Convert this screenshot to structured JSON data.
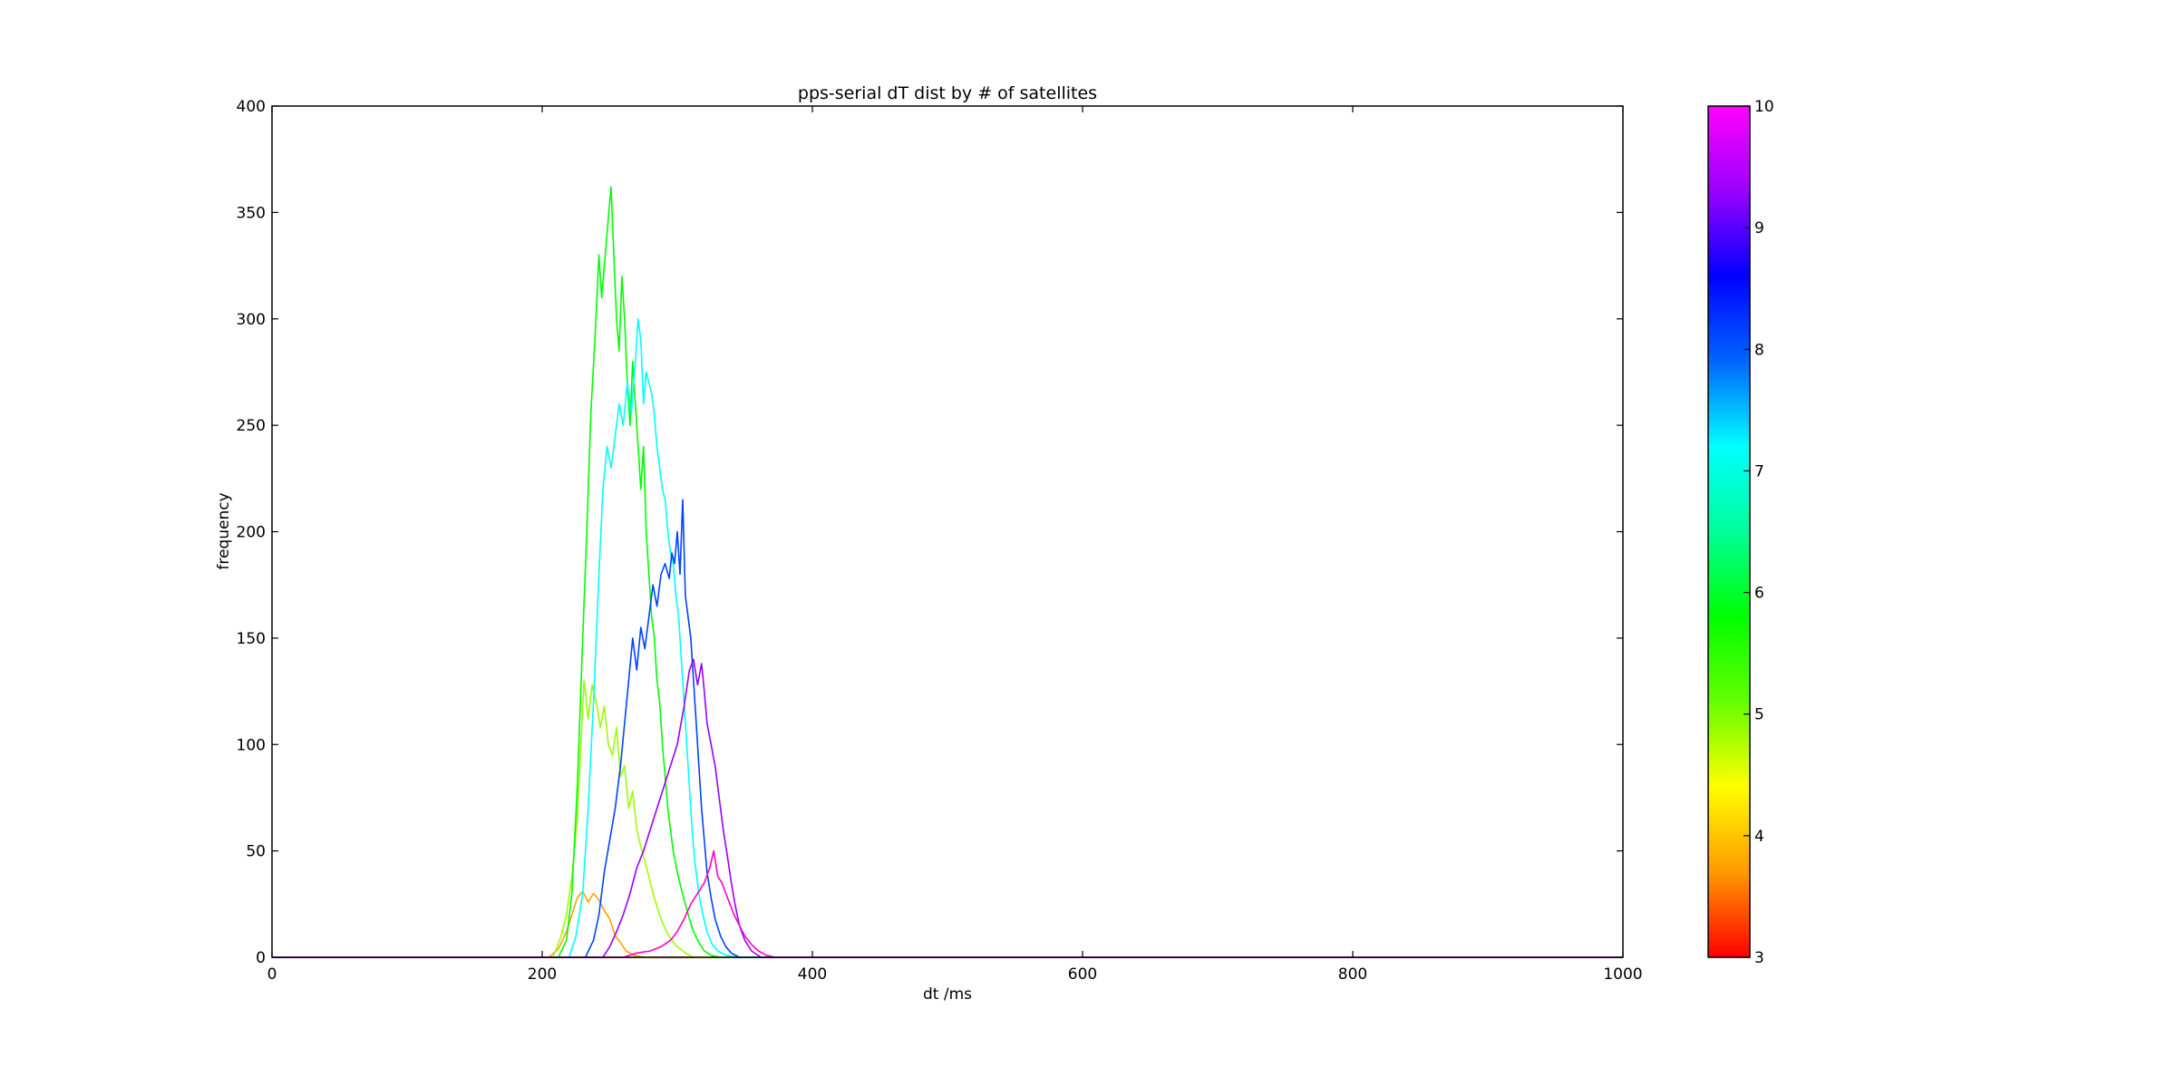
{
  "chart_data": {
    "type": "line",
    "title": "pps-serial dT dist by # of satellites",
    "xlabel": "dt /ms",
    "ylabel": "frequency",
    "xlim": [
      0,
      1000
    ],
    "ylim": [
      0,
      400
    ],
    "xticks": [
      0,
      200,
      400,
      600,
      800,
      1000
    ],
    "yticks": [
      0,
      50,
      100,
      150,
      200,
      250,
      300,
      350,
      400
    ],
    "grid": false,
    "legend": "none",
    "colorbar": {
      "min": 3,
      "max": 10,
      "ticks": [
        3,
        4,
        5,
        6,
        7,
        8,
        9,
        10
      ],
      "colormap": [
        "#ff0000",
        "#ff9900",
        "#ffff00",
        "#66ff00",
        "#00ff00",
        "#00ff99",
        "#00ffff",
        "#0066ff",
        "#0000ff",
        "#9900ff",
        "#ff00ff"
      ]
    },
    "series": [
      {
        "sats": 3,
        "color": "#ff0000",
        "points": [
          [
            0,
            0
          ],
          [
            1000,
            0
          ]
        ]
      },
      {
        "sats": 4,
        "color": "#ffa200",
        "points": [
          [
            0,
            0
          ],
          [
            205,
            0
          ],
          [
            212,
            4
          ],
          [
            218,
            12
          ],
          [
            222,
            20
          ],
          [
            226,
            28
          ],
          [
            230,
            31
          ],
          [
            234,
            26
          ],
          [
            238,
            30
          ],
          [
            242,
            27
          ],
          [
            246,
            22
          ],
          [
            250,
            18
          ],
          [
            254,
            10
          ],
          [
            258,
            7
          ],
          [
            262,
            3
          ],
          [
            268,
            1
          ],
          [
            276,
            0
          ],
          [
            1000,
            0
          ]
        ]
      },
      {
        "sats": 5,
        "color": "#9aff00",
        "points": [
          [
            0,
            0
          ],
          [
            208,
            0
          ],
          [
            214,
            10
          ],
          [
            218,
            20
          ],
          [
            222,
            38
          ],
          [
            226,
            65
          ],
          [
            229,
            105
          ],
          [
            231,
            130
          ],
          [
            234,
            112
          ],
          [
            237,
            128
          ],
          [
            240,
            120
          ],
          [
            243,
            108
          ],
          [
            246,
            118
          ],
          [
            249,
            100
          ],
          [
            252,
            95
          ],
          [
            255,
            108
          ],
          [
            258,
            85
          ],
          [
            261,
            90
          ],
          [
            264,
            70
          ],
          [
            267,
            78
          ],
          [
            270,
            60
          ],
          [
            273,
            52
          ],
          [
            276,
            45
          ],
          [
            279,
            38
          ],
          [
            282,
            30
          ],
          [
            285,
            24
          ],
          [
            288,
            18
          ],
          [
            292,
            12
          ],
          [
            296,
            8
          ],
          [
            300,
            5
          ],
          [
            306,
            2
          ],
          [
            312,
            0
          ],
          [
            1000,
            0
          ]
        ]
      },
      {
        "sats": 6,
        "color": "#00ff00",
        "points": [
          [
            0,
            0
          ],
          [
            212,
            0
          ],
          [
            218,
            8
          ],
          [
            222,
            30
          ],
          [
            226,
            80
          ],
          [
            230,
            150
          ],
          [
            233,
            200
          ],
          [
            236,
            255
          ],
          [
            239,
            290
          ],
          [
            242,
            330
          ],
          [
            244,
            310
          ],
          [
            246,
            325
          ],
          [
            248,
            340
          ],
          [
            250,
            355
          ],
          [
            251,
            362
          ],
          [
            253,
            330
          ],
          [
            255,
            300
          ],
          [
            257,
            285
          ],
          [
            259,
            320
          ],
          [
            261,
            300
          ],
          [
            263,
            270
          ],
          [
            265,
            250
          ],
          [
            267,
            280
          ],
          [
            269,
            260
          ],
          [
            271,
            240
          ],
          [
            273,
            220
          ],
          [
            275,
            240
          ],
          [
            277,
            200
          ],
          [
            279,
            180
          ],
          [
            281,
            160
          ],
          [
            283,
            150
          ],
          [
            285,
            130
          ],
          [
            287,
            120
          ],
          [
            289,
            100
          ],
          [
            291,
            85
          ],
          [
            293,
            70
          ],
          [
            295,
            60
          ],
          [
            297,
            50
          ],
          [
            300,
            40
          ],
          [
            303,
            32
          ],
          [
            306,
            25
          ],
          [
            309,
            18
          ],
          [
            312,
            12
          ],
          [
            316,
            7
          ],
          [
            320,
            3
          ],
          [
            325,
            1
          ],
          [
            332,
            0
          ],
          [
            1000,
            0
          ]
        ]
      },
      {
        "sats": 7,
        "color": "#00ffff",
        "points": [
          [
            0,
            0
          ],
          [
            220,
            0
          ],
          [
            225,
            10
          ],
          [
            230,
            30
          ],
          [
            234,
            70
          ],
          [
            238,
            120
          ],
          [
            242,
            180
          ],
          [
            245,
            220
          ],
          [
            248,
            240
          ],
          [
            251,
            230
          ],
          [
            254,
            245
          ],
          [
            257,
            260
          ],
          [
            260,
            250
          ],
          [
            263,
            270
          ],
          [
            266,
            255
          ],
          [
            269,
            280
          ],
          [
            271,
            300
          ],
          [
            273,
            290
          ],
          [
            275,
            260
          ],
          [
            277,
            275
          ],
          [
            279,
            270
          ],
          [
            281,
            265
          ],
          [
            283,
            255
          ],
          [
            285,
            240
          ],
          [
            287,
            230
          ],
          [
            289,
            220
          ],
          [
            291,
            215
          ],
          [
            293,
            200
          ],
          [
            295,
            190
          ],
          [
            297,
            185
          ],
          [
            299,
            170
          ],
          [
            301,
            160
          ],
          [
            303,
            140
          ],
          [
            305,
            120
          ],
          [
            307,
            100
          ],
          [
            309,
            80
          ],
          [
            311,
            60
          ],
          [
            313,
            45
          ],
          [
            316,
            30
          ],
          [
            319,
            20
          ],
          [
            322,
            12
          ],
          [
            326,
            6
          ],
          [
            330,
            3
          ],
          [
            336,
            1
          ],
          [
            345,
            0
          ],
          [
            1000,
            0
          ]
        ]
      },
      {
        "sats": 8,
        "color": "#0044ff",
        "points": [
          [
            0,
            0
          ],
          [
            232,
            0
          ],
          [
            238,
            8
          ],
          [
            242,
            20
          ],
          [
            246,
            40
          ],
          [
            250,
            55
          ],
          [
            254,
            70
          ],
          [
            258,
            90
          ],
          [
            261,
            110
          ],
          [
            264,
            130
          ],
          [
            267,
            150
          ],
          [
            270,
            135
          ],
          [
            273,
            155
          ],
          [
            276,
            145
          ],
          [
            279,
            160
          ],
          [
            282,
            175
          ],
          [
            285,
            165
          ],
          [
            288,
            180
          ],
          [
            291,
            185
          ],
          [
            294,
            178
          ],
          [
            296,
            190
          ],
          [
            298,
            185
          ],
          [
            300,
            200
          ],
          [
            302,
            180
          ],
          [
            304,
            215
          ],
          [
            306,
            170
          ],
          [
            308,
            160
          ],
          [
            310,
            150
          ],
          [
            312,
            130
          ],
          [
            314,
            110
          ],
          [
            316,
            90
          ],
          [
            318,
            70
          ],
          [
            320,
            55
          ],
          [
            322,
            40
          ],
          [
            325,
            28
          ],
          [
            328,
            18
          ],
          [
            332,
            10
          ],
          [
            336,
            5
          ],
          [
            340,
            2
          ],
          [
            346,
            0
          ],
          [
            1000,
            0
          ]
        ]
      },
      {
        "sats": 9,
        "color": "#9900ff",
        "points": [
          [
            0,
            0
          ],
          [
            245,
            0
          ],
          [
            250,
            5
          ],
          [
            255,
            12
          ],
          [
            260,
            20
          ],
          [
            265,
            30
          ],
          [
            270,
            42
          ],
          [
            275,
            50
          ],
          [
            280,
            60
          ],
          [
            285,
            70
          ],
          [
            290,
            80
          ],
          [
            295,
            90
          ],
          [
            300,
            100
          ],
          [
            305,
            118
          ],
          [
            309,
            135
          ],
          [
            312,
            140
          ],
          [
            315,
            128
          ],
          [
            318,
            138
          ],
          [
            320,
            125
          ],
          [
            322,
            110
          ],
          [
            325,
            100
          ],
          [
            328,
            90
          ],
          [
            331,
            75
          ],
          [
            334,
            60
          ],
          [
            337,
            48
          ],
          [
            340,
            35
          ],
          [
            343,
            24
          ],
          [
            346,
            15
          ],
          [
            350,
            8
          ],
          [
            355,
            3
          ],
          [
            362,
            0
          ],
          [
            1000,
            0
          ]
        ]
      },
      {
        "sats": 10,
        "color": "#ff00cc",
        "points": [
          [
            0,
            0
          ],
          [
            260,
            0
          ],
          [
            270,
            2
          ],
          [
            280,
            3
          ],
          [
            288,
            5
          ],
          [
            295,
            8
          ],
          [
            300,
            12
          ],
          [
            305,
            18
          ],
          [
            310,
            25
          ],
          [
            315,
            30
          ],
          [
            320,
            35
          ],
          [
            324,
            42
          ],
          [
            327,
            50
          ],
          [
            330,
            38
          ],
          [
            333,
            35
          ],
          [
            336,
            30
          ],
          [
            339,
            25
          ],
          [
            342,
            20
          ],
          [
            346,
            15
          ],
          [
            350,
            10
          ],
          [
            355,
            6
          ],
          [
            360,
            3
          ],
          [
            366,
            1
          ],
          [
            372,
            0
          ],
          [
            1000,
            0
          ]
        ]
      }
    ]
  }
}
